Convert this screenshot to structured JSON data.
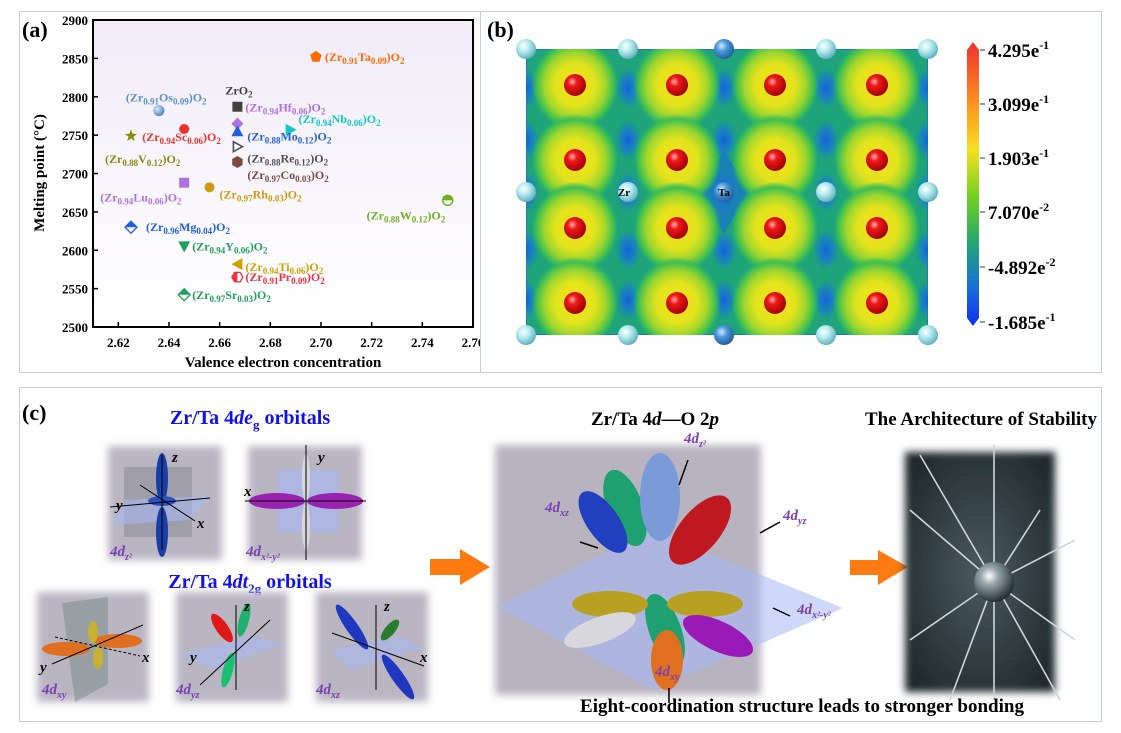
{
  "panel_a": {
    "label": "(a)",
    "chart_data": {
      "type": "scatter",
      "title": "",
      "xlabel": "Valence electron concentration",
      "ylabel": "Melting point (°C)",
      "xlim": [
        2.61,
        2.76
      ],
      "ylim": [
        2500,
        2900
      ],
      "xticks": [
        "2.62",
        "2.64",
        "2.66",
        "2.68",
        "2.70",
        "2.72",
        "2.74",
        "2.76"
      ],
      "yticks": [
        "2500",
        "2550",
        "2600",
        "2650",
        "2700",
        "2750",
        "2800",
        "2850",
        "2900"
      ],
      "grid": false,
      "points": [
        {
          "label": "(Zr0.91Ta0.09)O2",
          "x": 2.698,
          "y": 2852,
          "marker": "pentagon",
          "color": "#ff6a00"
        },
        {
          "label": "(Zr0.91Os0.09)O2",
          "x": 2.636,
          "y": 2782,
          "marker": "sphere",
          "color": "#5b8fd0"
        },
        {
          "label": "ZrO2",
          "x": 2.667,
          "y": 2787,
          "marker": "square",
          "color": "#404040"
        },
        {
          "label": "(Zr0.94Hf0.06)O2",
          "x": 2.667,
          "y": 2765,
          "marker": "diamond",
          "color": "#b070e0"
        },
        {
          "label": "(Zr0.94Sc0.06)O2",
          "x": 2.646,
          "y": 2758,
          "marker": "circle",
          "color": "#f03030"
        },
        {
          "label": "(Zr0.94Nb0.06)O2",
          "x": 2.688,
          "y": 2757,
          "marker": "triangle-right",
          "color": "#10c8c8"
        },
        {
          "label": "(Zr0.88V0.12)O2",
          "x": 2.625,
          "y": 2749,
          "marker": "star",
          "color": "#8a8a10"
        },
        {
          "label": "(Zr0.88Mo0.12)O2",
          "x": 2.667,
          "y": 2755,
          "marker": "triangle-up",
          "color": "#2060e0"
        },
        {
          "label": "(Zr0.88Re0.12)O2",
          "x": 2.667,
          "y": 2735,
          "marker": "triangle-right-open",
          "color": "#505050"
        },
        {
          "label": "(Zr0.97Co0.03)O2",
          "x": 2.667,
          "y": 2715,
          "marker": "hexagon",
          "color": "#7a4a40"
        },
        {
          "label": "(Zr0.94Lu0.06)O2",
          "x": 2.646,
          "y": 2688,
          "marker": "square",
          "color": "#b070e0"
        },
        {
          "label": "(Zr0.97Rh0.03)O2",
          "x": 2.656,
          "y": 2682,
          "marker": "circle",
          "color": "#d09a10"
        },
        {
          "label": "(Zr0.88W0.12)O2",
          "x": 2.75,
          "y": 2665,
          "marker": "half-circle",
          "color": "#70b020"
        },
        {
          "label": "(Zr0.96Mg0.04)O2",
          "x": 2.625,
          "y": 2630,
          "marker": "half-diamond",
          "color": "#2060e0"
        },
        {
          "label": "(Zr0.94Y0.06)O2",
          "x": 2.646,
          "y": 2605,
          "marker": "triangle-down",
          "color": "#20a060"
        },
        {
          "label": "(Zr0.94Ti0.06)O2",
          "x": 2.667,
          "y": 2582,
          "marker": "triangle-left",
          "color": "#d0a000"
        },
        {
          "label": "(Zr0.91Pr0.09)O2",
          "x": 2.667,
          "y": 2565,
          "marker": "half-hexagon",
          "color": "#f03040"
        },
        {
          "label": "(Zr0.97Sr0.03)O2",
          "x": 2.646,
          "y": 2542,
          "marker": "half-diamond",
          "color": "#20a060"
        }
      ]
    }
  },
  "panel_b": {
    "label": "(b)",
    "atom_labels": {
      "zr": "Zr",
      "ta": "Ta"
    },
    "colorbar": [
      {
        "m": "4.295e",
        "exp": "-1"
      },
      {
        "m": "3.099e",
        "exp": "-1"
      },
      {
        "m": "1.903e",
        "exp": "-1"
      },
      {
        "m": "7.070e",
        "exp": "-2"
      },
      {
        "m": "-4.892e",
        "exp": "-2"
      },
      {
        "m": "-1.685e",
        "exp": "-1"
      }
    ]
  },
  "panel_c": {
    "label": "(c)",
    "eg_title": {
      "pre": "Zr/Ta 4",
      "it": "de",
      "sub": "g",
      "post": " orbitals"
    },
    "t2g_title": {
      "pre": "Zr/Ta 4",
      "it": "dt",
      "sub": "2g",
      "post": " orbitals"
    },
    "bond_title": {
      "a": "Zr/Ta 4",
      "b": "d",
      "c": "—O 2",
      "d": "p"
    },
    "stability_title": "The Architecture of Stability",
    "caption": "Eight-coordination structure leads to stronger bonding",
    "orbital_prefix": "4d",
    "orbitals": {
      "z2": "z²",
      "x2y2": "x²-y²",
      "xy": "xy",
      "yz": "yz",
      "xz": "xz"
    },
    "axes": {
      "x": "x",
      "y": "y",
      "z": "z"
    },
    "colors": {
      "title_blue": "#1010e8",
      "orbital_label": "#7a3fb0",
      "arrow": "#ff7a10"
    }
  }
}
